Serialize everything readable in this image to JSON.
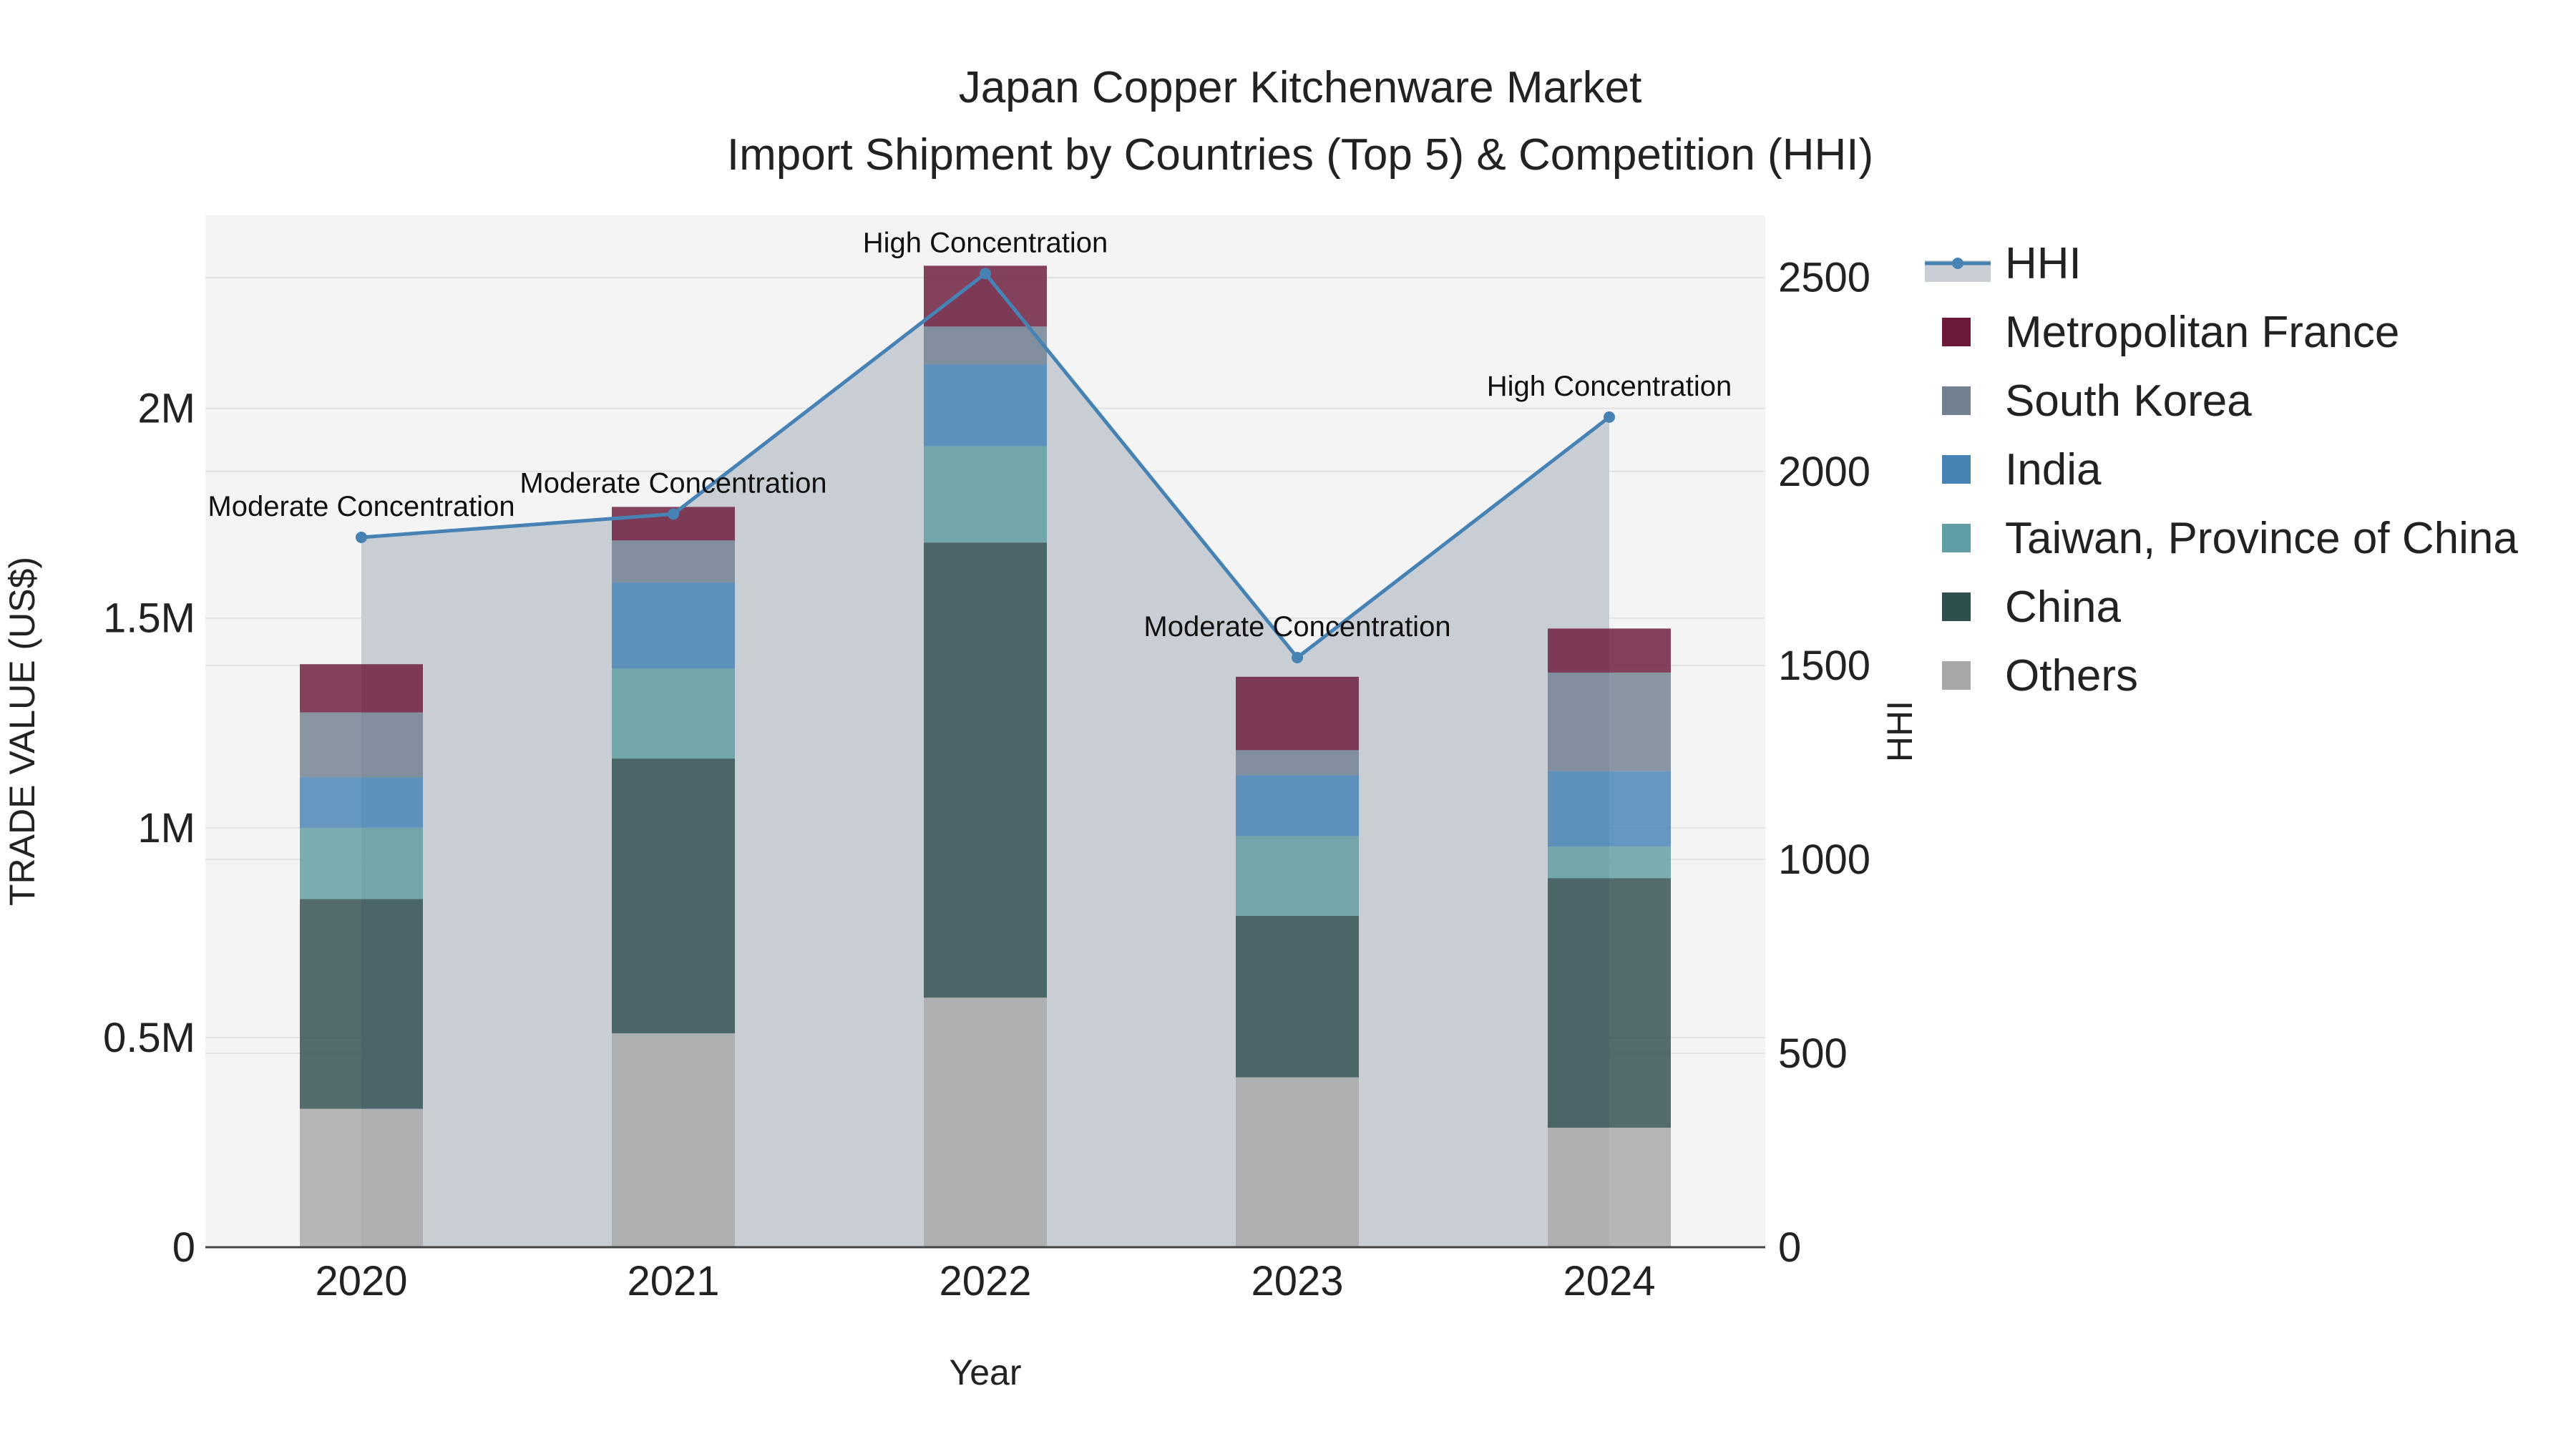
{
  "chart_data": {
    "type": "bar",
    "title": "Japan Copper Kitchenware Market",
    "subtitle": "Import Shipment by Countries (Top 5) & Competition (HHI)",
    "xlabel": "Year",
    "ylabel": "TRADE VALUE (US$)",
    "y2label": "HHI",
    "categories": [
      "2020",
      "2021",
      "2022",
      "2023",
      "2024"
    ],
    "ylim": [
      0,
      2460000
    ],
    "y2lim": [
      0,
      2660
    ],
    "yticks": [
      {
        "value": 0,
        "label": "0"
      },
      {
        "value": 500000,
        "label": "0.5M"
      },
      {
        "value": 1000000,
        "label": "1M"
      },
      {
        "value": 1500000,
        "label": "1.5M"
      },
      {
        "value": 2000000,
        "label": "2M"
      }
    ],
    "y2ticks": [
      {
        "value": 0,
        "label": "0"
      },
      {
        "value": 500,
        "label": "500"
      },
      {
        "value": 1000,
        "label": "1000"
      },
      {
        "value": 1500,
        "label": "1500"
      },
      {
        "value": 2000,
        "label": "2000"
      },
      {
        "value": 2500,
        "label": "2500"
      }
    ],
    "series": [
      {
        "name": "Others",
        "color": "#a8a8a8",
        "values": [
          330000,
          510000,
          595000,
          405000,
          285000
        ]
      },
      {
        "name": "China",
        "color": "#2f4f4f",
        "values": [
          500000,
          655000,
          1085000,
          385000,
          595000
        ]
      },
      {
        "name": "Taiwan, Province of China",
        "color": "#5f9ea0",
        "values": [
          170000,
          215000,
          230000,
          190000,
          75000
        ]
      },
      {
        "name": "India",
        "color": "#4682b4",
        "values": [
          120000,
          205000,
          195000,
          145000,
          180000
        ]
      },
      {
        "name": "South Korea",
        "color": "#708090",
        "values": [
          155000,
          100000,
          90000,
          60000,
          235000
        ]
      },
      {
        "name": "Metropolitan France",
        "color": "#6b1a3a",
        "values": [
          115000,
          80000,
          145000,
          175000,
          105000
        ]
      }
    ],
    "hhi": {
      "name": "HHI",
      "color": "#4682b4",
      "values": [
        1830,
        1890,
        2510,
        1520,
        2140
      ],
      "annotations": [
        "Moderate Concentration",
        "Moderate Concentration",
        "High Concentration",
        "Moderate Concentration",
        "High Concentration"
      ]
    },
    "legend_order": [
      "HHI",
      "Metropolitan France",
      "South Korea",
      "India",
      "Taiwan, Province of China",
      "China",
      "Others"
    ],
    "legend_position": "right",
    "grid": true
  }
}
